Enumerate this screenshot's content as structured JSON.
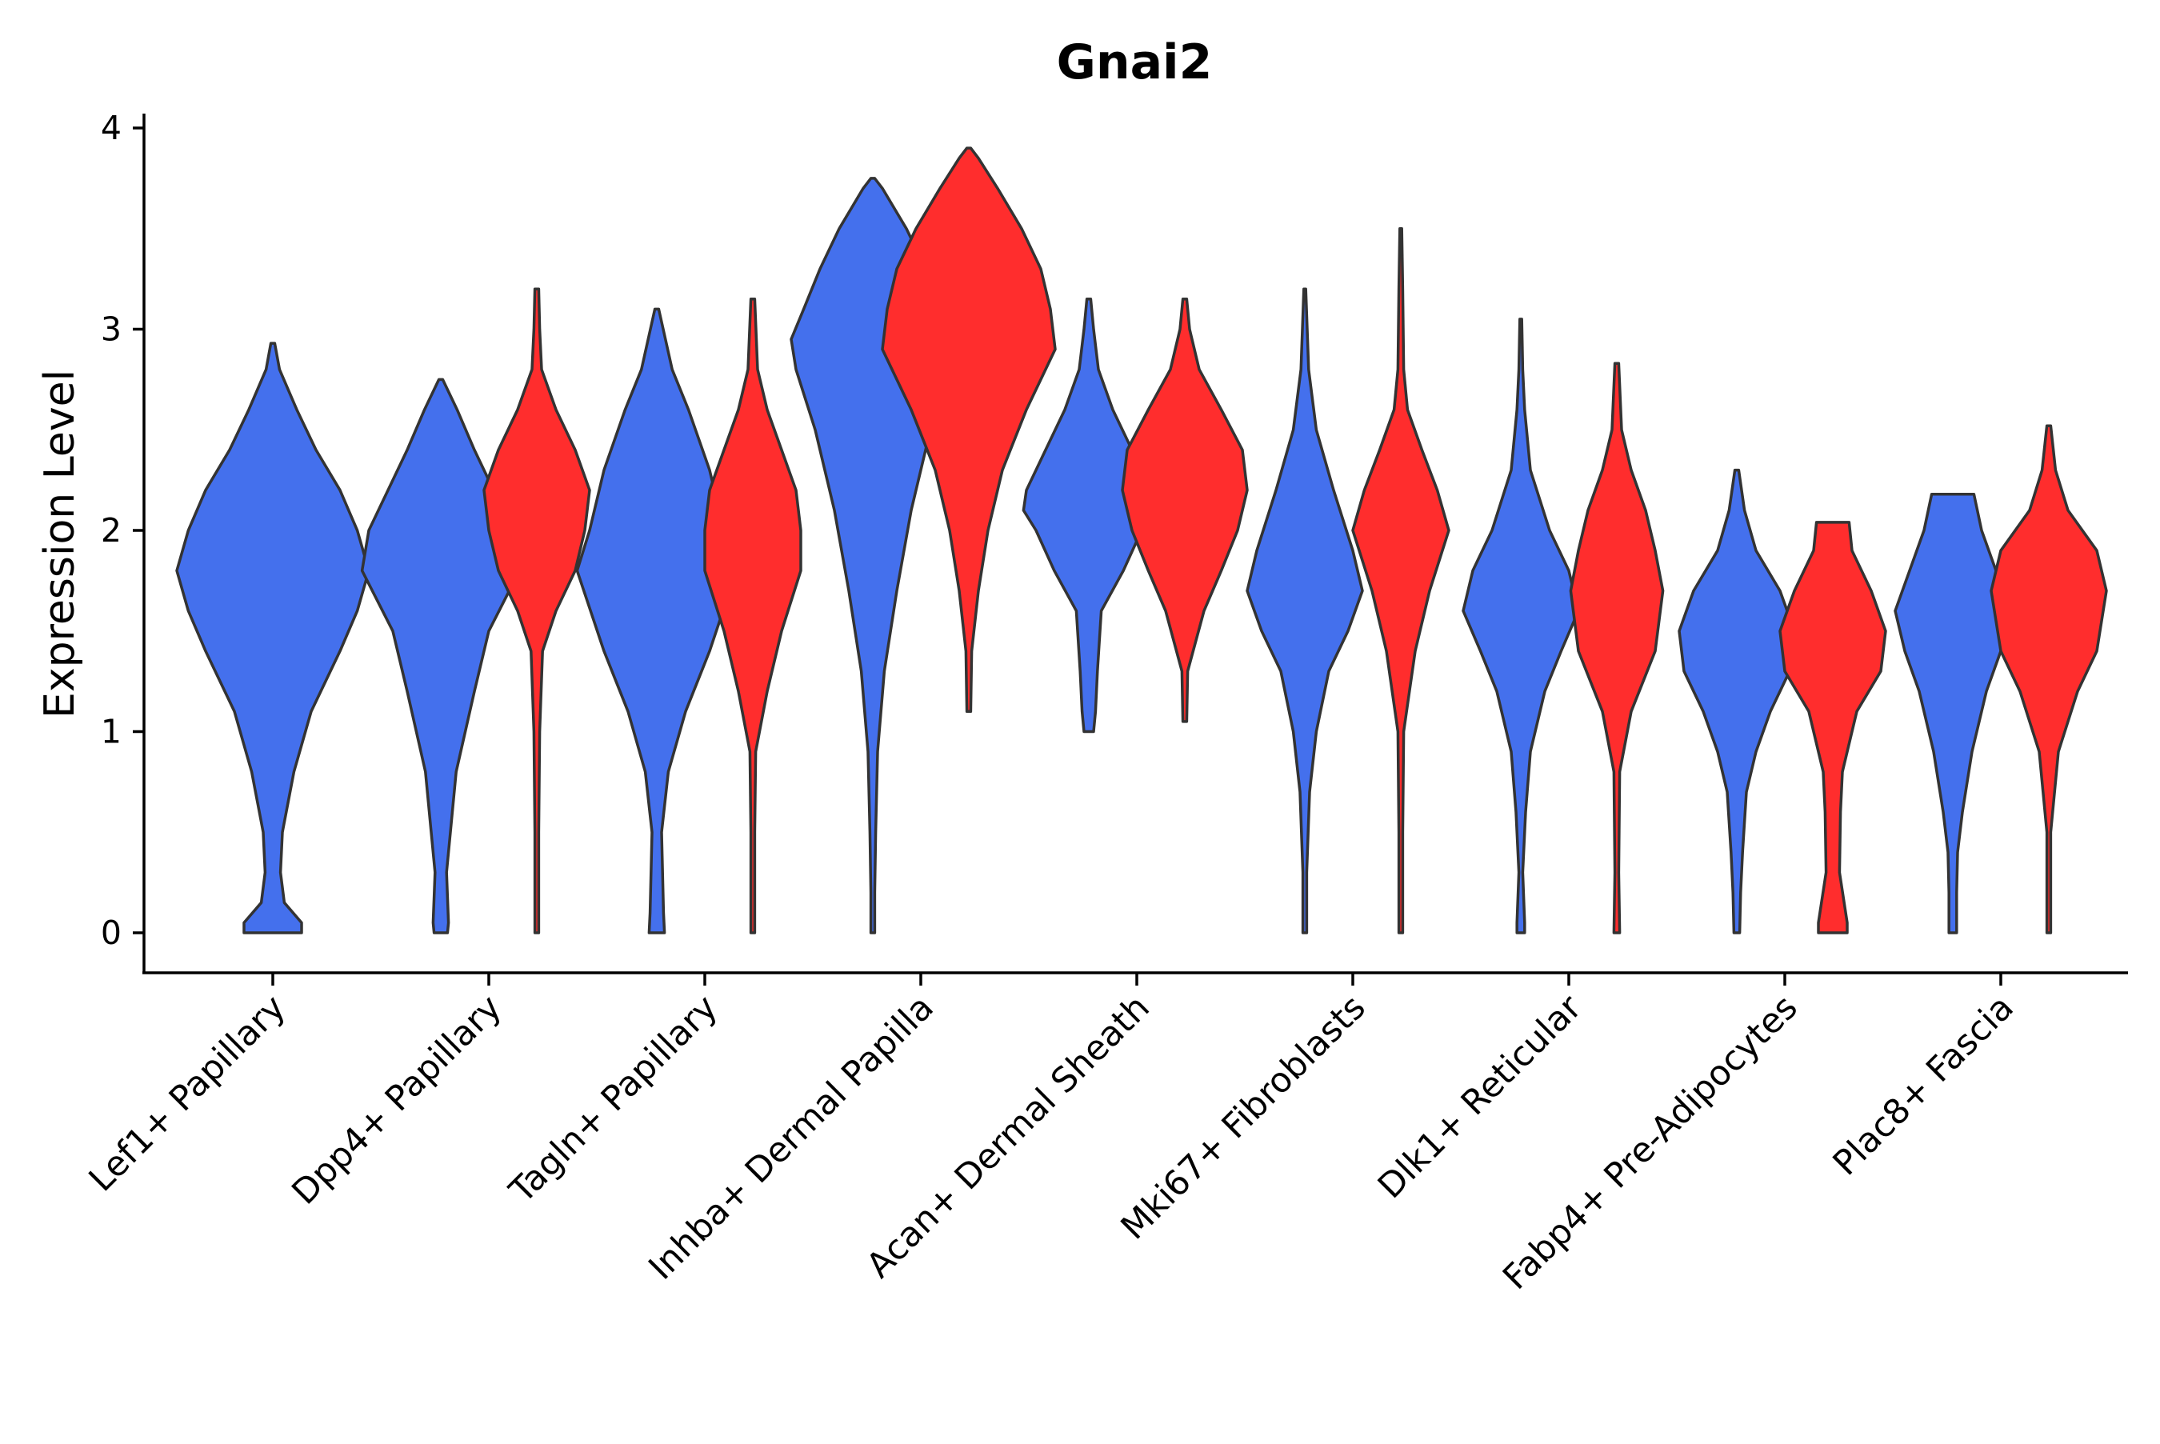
{
  "chart_data": {
    "type": "violin",
    "title": "Gnai2",
    "xlabel": "",
    "ylabel": "Expression Level",
    "ylim": [
      -0.2,
      4.1
    ],
    "yticks": [
      0,
      1,
      2,
      3,
      4
    ],
    "grid": false,
    "legend": "none",
    "colors": {
      "group_a": "#4470ED",
      "group_b": "#FF2D2D",
      "outline": "#333333"
    },
    "categories": [
      "Lef1+ Papillary",
      "Dpp4+ Papillary",
      "Tagln+ Papillary",
      "Inhba+ Dermal Papilla",
      "Acan+ Dermal Sheath",
      "Mki67+ Fibroblasts",
      "Dlk1+ Reticular",
      "Fabp4+ Pre-Adipocytes",
      "Plac8+ Fascia"
    ],
    "series": [
      {
        "name": "group_a",
        "color": "#4470ED",
        "violins": [
          {
            "category": "Lef1+ Papillary",
            "profile": [
              [
                0,
                0.3
              ],
              [
                0.05,
                0.3
              ],
              [
                0.15,
                0.12
              ],
              [
                0.3,
                0.08
              ],
              [
                0.5,
                0.1
              ],
              [
                0.65,
                0.16
              ],
              [
                0.8,
                0.22
              ],
              [
                1.1,
                0.4
              ],
              [
                1.4,
                0.7
              ],
              [
                1.6,
                0.88
              ],
              [
                1.8,
                1.0
              ],
              [
                2.0,
                0.88
              ],
              [
                2.2,
                0.7
              ],
              [
                2.4,
                0.45
              ],
              [
                2.6,
                0.25
              ],
              [
                2.8,
                0.07
              ],
              [
                2.93,
                0.02
              ]
            ]
          },
          {
            "category": "Dpp4+ Papillary",
            "profile": [
              [
                0,
                0.07
              ],
              [
                0.05,
                0.08
              ],
              [
                0.3,
                0.06
              ],
              [
                0.5,
                0.1
              ],
              [
                0.8,
                0.16
              ],
              [
                1.2,
                0.35
              ],
              [
                1.5,
                0.5
              ],
              [
                1.8,
                0.82
              ],
              [
                2.0,
                0.75
              ],
              [
                2.2,
                0.55
              ],
              [
                2.4,
                0.35
              ],
              [
                2.6,
                0.17
              ],
              [
                2.75,
                0.02
              ]
            ]
          },
          {
            "category": "Tagln+ Papillary",
            "profile": [
              [
                0,
                0.08
              ],
              [
                0.1,
                0.07
              ],
              [
                0.5,
                0.05
              ],
              [
                0.8,
                0.12
              ],
              [
                1.1,
                0.3
              ],
              [
                1.4,
                0.55
              ],
              [
                1.8,
                0.83
              ],
              [
                2.0,
                0.7
              ],
              [
                2.3,
                0.55
              ],
              [
                2.6,
                0.33
              ],
              [
                2.8,
                0.16
              ],
              [
                3.1,
                0.02
              ]
            ]
          },
          {
            "category": "Inhba+ Dermal Papilla",
            "profile": [
              [
                0,
                0.02
              ],
              [
                0.2,
                0.02
              ],
              [
                0.5,
                0.03
              ],
              [
                0.9,
                0.05
              ],
              [
                1.3,
                0.12
              ],
              [
                1.7,
                0.25
              ],
              [
                2.1,
                0.4
              ],
              [
                2.5,
                0.6
              ],
              [
                2.8,
                0.8
              ],
              [
                2.95,
                0.85
              ],
              [
                3.1,
                0.72
              ],
              [
                3.3,
                0.55
              ],
              [
                3.5,
                0.35
              ],
              [
                3.7,
                0.1
              ],
              [
                3.75,
                0.02
              ]
            ]
          },
          {
            "category": "Acan+ Dermal Sheath",
            "profile": [
              [
                1.0,
                0.05
              ],
              [
                1.1,
                0.07
              ],
              [
                1.3,
                0.09
              ],
              [
                1.6,
                0.13
              ],
              [
                1.8,
                0.36
              ],
              [
                2.0,
                0.55
              ],
              [
                2.1,
                0.68
              ],
              [
                2.2,
                0.65
              ],
              [
                2.4,
                0.45
              ],
              [
                2.6,
                0.25
              ],
              [
                2.8,
                0.1
              ],
              [
                3.0,
                0.05
              ],
              [
                3.15,
                0.02
              ]
            ]
          },
          {
            "category": "Mki67+ Fibroblasts",
            "profile": [
              [
                0,
                0.02
              ],
              [
                0.3,
                0.02
              ],
              [
                0.7,
                0.05
              ],
              [
                1.0,
                0.12
              ],
              [
                1.3,
                0.25
              ],
              [
                1.5,
                0.45
              ],
              [
                1.7,
                0.6
              ],
              [
                1.9,
                0.5
              ],
              [
                2.2,
                0.3
              ],
              [
                2.5,
                0.12
              ],
              [
                2.8,
                0.04
              ],
              [
                3.2,
                0.01
              ]
            ]
          },
          {
            "category": "Dlk1+ Reticular",
            "profile": [
              [
                0,
                0.04
              ],
              [
                0.05,
                0.04
              ],
              [
                0.3,
                0.02
              ],
              [
                0.6,
                0.05
              ],
              [
                0.9,
                0.1
              ],
              [
                1.2,
                0.25
              ],
              [
                1.4,
                0.42
              ],
              [
                1.6,
                0.6
              ],
              [
                1.8,
                0.5
              ],
              [
                2.0,
                0.3
              ],
              [
                2.3,
                0.1
              ],
              [
                2.6,
                0.04
              ],
              [
                2.8,
                0.02
              ],
              [
                3.05,
                0.01
              ]
            ]
          },
          {
            "category": "Fabp4+ Pre-Adipocytes",
            "profile": [
              [
                0,
                0.03
              ],
              [
                0.2,
                0.04
              ],
              [
                0.4,
                0.06
              ],
              [
                0.7,
                0.1
              ],
              [
                0.9,
                0.2
              ],
              [
                1.1,
                0.35
              ],
              [
                1.3,
                0.55
              ],
              [
                1.5,
                0.6
              ],
              [
                1.7,
                0.45
              ],
              [
                1.9,
                0.2
              ],
              [
                2.1,
                0.08
              ],
              [
                2.3,
                0.02
              ]
            ]
          },
          {
            "category": "Plac8+ Fascia",
            "profile": [
              [
                0,
                0.04
              ],
              [
                0.2,
                0.04
              ],
              [
                0.4,
                0.05
              ],
              [
                0.6,
                0.1
              ],
              [
                0.9,
                0.2
              ],
              [
                1.2,
                0.35
              ],
              [
                1.4,
                0.5
              ],
              [
                1.6,
                0.6
              ],
              [
                1.8,
                0.45
              ],
              [
                2.0,
                0.3
              ],
              [
                2.18,
                0.22
              ]
            ]
          }
        ]
      },
      {
        "name": "group_b",
        "color": "#FF2D2D",
        "violins": [
          {
            "category": "Dpp4+ Papillary",
            "profile": [
              [
                0,
                0.02
              ],
              [
                0.5,
                0.02
              ],
              [
                1.0,
                0.03
              ],
              [
                1.4,
                0.06
              ],
              [
                1.6,
                0.2
              ],
              [
                1.8,
                0.4
              ],
              [
                2.0,
                0.5
              ],
              [
                2.2,
                0.55
              ],
              [
                2.4,
                0.4
              ],
              [
                2.6,
                0.2
              ],
              [
                2.8,
                0.05
              ],
              [
                3.0,
                0.03
              ],
              [
                3.2,
                0.02
              ]
            ]
          },
          {
            "category": "Tagln+ Papillary",
            "profile": [
              [
                0,
                0.02
              ],
              [
                0.5,
                0.02
              ],
              [
                0.9,
                0.03
              ],
              [
                1.2,
                0.15
              ],
              [
                1.5,
                0.3
              ],
              [
                1.8,
                0.5
              ],
              [
                2.0,
                0.5
              ],
              [
                2.2,
                0.45
              ],
              [
                2.4,
                0.3
              ],
              [
                2.6,
                0.15
              ],
              [
                2.8,
                0.05
              ],
              [
                3.15,
                0.02
              ]
            ]
          },
          {
            "category": "Inhba+ Dermal Papilla",
            "profile": [
              [
                1.1,
                0.02
              ],
              [
                1.4,
                0.03
              ],
              [
                1.7,
                0.1
              ],
              [
                2.0,
                0.2
              ],
              [
                2.3,
                0.35
              ],
              [
                2.6,
                0.6
              ],
              [
                2.9,
                0.9
              ],
              [
                3.1,
                0.85
              ],
              [
                3.3,
                0.75
              ],
              [
                3.5,
                0.55
              ],
              [
                3.7,
                0.3
              ],
              [
                3.85,
                0.1
              ],
              [
                3.9,
                0.02
              ]
            ]
          },
          {
            "category": "Acan+ Dermal Sheath",
            "profile": [
              [
                1.05,
                0.02
              ],
              [
                1.3,
                0.03
              ],
              [
                1.6,
                0.2
              ],
              [
                1.8,
                0.38
              ],
              [
                2.0,
                0.55
              ],
              [
                2.2,
                0.65
              ],
              [
                2.4,
                0.6
              ],
              [
                2.6,
                0.38
              ],
              [
                2.8,
                0.15
              ],
              [
                3.0,
                0.05
              ],
              [
                3.15,
                0.02
              ]
            ]
          },
          {
            "category": "Mki67+ Fibroblasts",
            "profile": [
              [
                0,
                0.02
              ],
              [
                0.5,
                0.02
              ],
              [
                1.0,
                0.03
              ],
              [
                1.4,
                0.15
              ],
              [
                1.7,
                0.3
              ],
              [
                2.0,
                0.5
              ],
              [
                2.2,
                0.38
              ],
              [
                2.4,
                0.22
              ],
              [
                2.6,
                0.07
              ],
              [
                2.8,
                0.03
              ],
              [
                3.2,
                0.02
              ],
              [
                3.5,
                0.01
              ]
            ]
          },
          {
            "category": "Dlk1+ Reticular",
            "profile": [
              [
                0,
                0.03
              ],
              [
                0.3,
                0.02
              ],
              [
                0.8,
                0.03
              ],
              [
                1.1,
                0.15
              ],
              [
                1.4,
                0.4
              ],
              [
                1.7,
                0.48
              ],
              [
                1.9,
                0.4
              ],
              [
                2.1,
                0.3
              ],
              [
                2.3,
                0.15
              ],
              [
                2.5,
                0.05
              ],
              [
                2.83,
                0.02
              ]
            ]
          },
          {
            "category": "Fabp4+ Pre-Adipocytes",
            "profile": [
              [
                0,
                0.15
              ],
              [
                0.05,
                0.15
              ],
              [
                0.3,
                0.07
              ],
              [
                0.6,
                0.08
              ],
              [
                0.8,
                0.1
              ],
              [
                1.1,
                0.25
              ],
              [
                1.3,
                0.5
              ],
              [
                1.5,
                0.55
              ],
              [
                1.7,
                0.4
              ],
              [
                1.9,
                0.2
              ],
              [
                2.04,
                0.17
              ]
            ]
          },
          {
            "category": "Plac8+ Fascia",
            "profile": [
              [
                0,
                0.02
              ],
              [
                0.5,
                0.02
              ],
              [
                0.9,
                0.1
              ],
              [
                1.2,
                0.3
              ],
              [
                1.4,
                0.5
              ],
              [
                1.7,
                0.6
              ],
              [
                1.9,
                0.5
              ],
              [
                2.1,
                0.2
              ],
              [
                2.3,
                0.07
              ],
              [
                2.52,
                0.02
              ]
            ]
          }
        ]
      }
    ]
  }
}
